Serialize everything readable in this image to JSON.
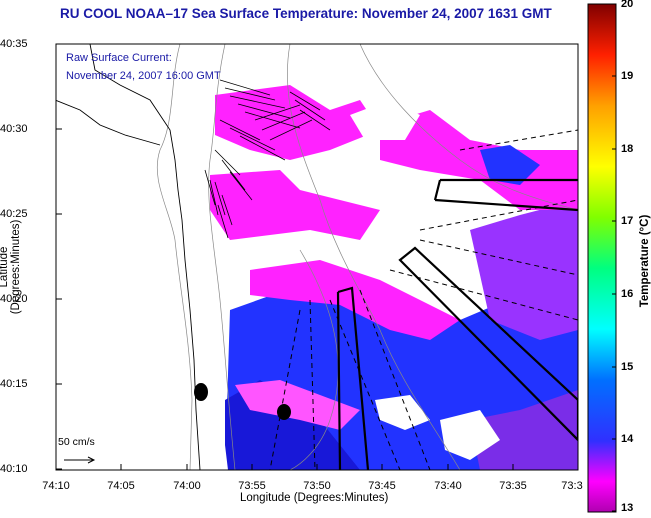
{
  "title": "RU COOL  NOAA–17  Sea Surface Temperature:  November 24, 2007 1631 GMT",
  "annotation": {
    "line1": "Raw Surface Current:",
    "line2": "November 24, 2007 16:00 GMT"
  },
  "scale": {
    "label": "50 cm/s"
  },
  "axes": {
    "xlabel": "Longitude (Degrees:Minutes)",
    "ylabel": "Latitude (Degrees:Minutes)",
    "xticks": [
      "74:10",
      "74:05",
      "74:00",
      "73:55",
      "73:50",
      "73:45",
      "73:40",
      "73:35",
      "73:3"
    ],
    "yticks": [
      "40:35",
      "40:30",
      "40:25",
      "40:20",
      "40:15",
      "40:10"
    ]
  },
  "colorbar": {
    "title": "Temperature (°C)",
    "ticks": [
      "20",
      "19",
      "18",
      "17",
      "16",
      "15",
      "14",
      "13"
    ],
    "range": [
      13,
      20
    ],
    "colors": [
      "#a000a0",
      "#ff00ff",
      "#0000ff",
      "#0060ff",
      "#00ffff",
      "#00ff60",
      "#80ff00",
      "#ffff00",
      "#ffa000",
      "#ff3000",
      "#cc0000",
      "#800000"
    ]
  },
  "map_colors": {
    "magenta": "#ff22ff",
    "purple": "#9933ff",
    "blue": "#2233ff",
    "deep_blue": "#1818e0",
    "land": "#ffffff",
    "frame": "#000000"
  }
}
